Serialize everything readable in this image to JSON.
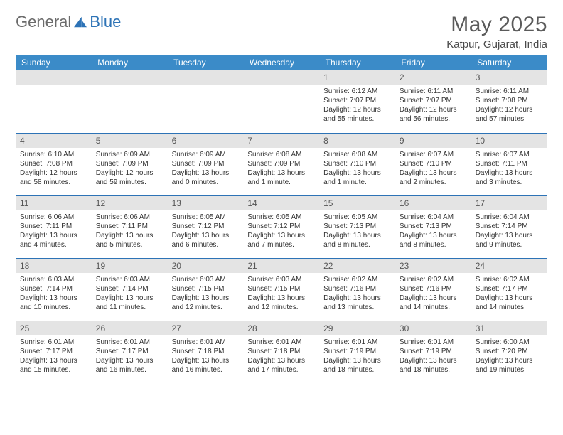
{
  "brand": {
    "word1": "General",
    "word2": "Blue"
  },
  "title": "May 2025",
  "location": "Katpur, Gujarat, India",
  "colors": {
    "header_bg": "#3b8bc8",
    "header_text": "#ffffff",
    "daynum_bg": "#e4e4e4",
    "row_divider": "#2d73b6",
    "body_text": "#333333"
  },
  "weekdays": [
    "Sunday",
    "Monday",
    "Tuesday",
    "Wednesday",
    "Thursday",
    "Friday",
    "Saturday"
  ],
  "weeks": [
    [
      {
        "n": "",
        "sr": "",
        "ss": "",
        "dl": ""
      },
      {
        "n": "",
        "sr": "",
        "ss": "",
        "dl": ""
      },
      {
        "n": "",
        "sr": "",
        "ss": "",
        "dl": ""
      },
      {
        "n": "",
        "sr": "",
        "ss": "",
        "dl": ""
      },
      {
        "n": "1",
        "sr": "Sunrise: 6:12 AM",
        "ss": "Sunset: 7:07 PM",
        "dl": "Daylight: 12 hours and 55 minutes."
      },
      {
        "n": "2",
        "sr": "Sunrise: 6:11 AM",
        "ss": "Sunset: 7:07 PM",
        "dl": "Daylight: 12 hours and 56 minutes."
      },
      {
        "n": "3",
        "sr": "Sunrise: 6:11 AM",
        "ss": "Sunset: 7:08 PM",
        "dl": "Daylight: 12 hours and 57 minutes."
      }
    ],
    [
      {
        "n": "4",
        "sr": "Sunrise: 6:10 AM",
        "ss": "Sunset: 7:08 PM",
        "dl": "Daylight: 12 hours and 58 minutes."
      },
      {
        "n": "5",
        "sr": "Sunrise: 6:09 AM",
        "ss": "Sunset: 7:09 PM",
        "dl": "Daylight: 12 hours and 59 minutes."
      },
      {
        "n": "6",
        "sr": "Sunrise: 6:09 AM",
        "ss": "Sunset: 7:09 PM",
        "dl": "Daylight: 13 hours and 0 minutes."
      },
      {
        "n": "7",
        "sr": "Sunrise: 6:08 AM",
        "ss": "Sunset: 7:09 PM",
        "dl": "Daylight: 13 hours and 1 minute."
      },
      {
        "n": "8",
        "sr": "Sunrise: 6:08 AM",
        "ss": "Sunset: 7:10 PM",
        "dl": "Daylight: 13 hours and 1 minute."
      },
      {
        "n": "9",
        "sr": "Sunrise: 6:07 AM",
        "ss": "Sunset: 7:10 PM",
        "dl": "Daylight: 13 hours and 2 minutes."
      },
      {
        "n": "10",
        "sr": "Sunrise: 6:07 AM",
        "ss": "Sunset: 7:11 PM",
        "dl": "Daylight: 13 hours and 3 minutes."
      }
    ],
    [
      {
        "n": "11",
        "sr": "Sunrise: 6:06 AM",
        "ss": "Sunset: 7:11 PM",
        "dl": "Daylight: 13 hours and 4 minutes."
      },
      {
        "n": "12",
        "sr": "Sunrise: 6:06 AM",
        "ss": "Sunset: 7:11 PM",
        "dl": "Daylight: 13 hours and 5 minutes."
      },
      {
        "n": "13",
        "sr": "Sunrise: 6:05 AM",
        "ss": "Sunset: 7:12 PM",
        "dl": "Daylight: 13 hours and 6 minutes."
      },
      {
        "n": "14",
        "sr": "Sunrise: 6:05 AM",
        "ss": "Sunset: 7:12 PM",
        "dl": "Daylight: 13 hours and 7 minutes."
      },
      {
        "n": "15",
        "sr": "Sunrise: 6:05 AM",
        "ss": "Sunset: 7:13 PM",
        "dl": "Daylight: 13 hours and 8 minutes."
      },
      {
        "n": "16",
        "sr": "Sunrise: 6:04 AM",
        "ss": "Sunset: 7:13 PM",
        "dl": "Daylight: 13 hours and 8 minutes."
      },
      {
        "n": "17",
        "sr": "Sunrise: 6:04 AM",
        "ss": "Sunset: 7:14 PM",
        "dl": "Daylight: 13 hours and 9 minutes."
      }
    ],
    [
      {
        "n": "18",
        "sr": "Sunrise: 6:03 AM",
        "ss": "Sunset: 7:14 PM",
        "dl": "Daylight: 13 hours and 10 minutes."
      },
      {
        "n": "19",
        "sr": "Sunrise: 6:03 AM",
        "ss": "Sunset: 7:14 PM",
        "dl": "Daylight: 13 hours and 11 minutes."
      },
      {
        "n": "20",
        "sr": "Sunrise: 6:03 AM",
        "ss": "Sunset: 7:15 PM",
        "dl": "Daylight: 13 hours and 12 minutes."
      },
      {
        "n": "21",
        "sr": "Sunrise: 6:03 AM",
        "ss": "Sunset: 7:15 PM",
        "dl": "Daylight: 13 hours and 12 minutes."
      },
      {
        "n": "22",
        "sr": "Sunrise: 6:02 AM",
        "ss": "Sunset: 7:16 PM",
        "dl": "Daylight: 13 hours and 13 minutes."
      },
      {
        "n": "23",
        "sr": "Sunrise: 6:02 AM",
        "ss": "Sunset: 7:16 PM",
        "dl": "Daylight: 13 hours and 14 minutes."
      },
      {
        "n": "24",
        "sr": "Sunrise: 6:02 AM",
        "ss": "Sunset: 7:17 PM",
        "dl": "Daylight: 13 hours and 14 minutes."
      }
    ],
    [
      {
        "n": "25",
        "sr": "Sunrise: 6:01 AM",
        "ss": "Sunset: 7:17 PM",
        "dl": "Daylight: 13 hours and 15 minutes."
      },
      {
        "n": "26",
        "sr": "Sunrise: 6:01 AM",
        "ss": "Sunset: 7:17 PM",
        "dl": "Daylight: 13 hours and 16 minutes."
      },
      {
        "n": "27",
        "sr": "Sunrise: 6:01 AM",
        "ss": "Sunset: 7:18 PM",
        "dl": "Daylight: 13 hours and 16 minutes."
      },
      {
        "n": "28",
        "sr": "Sunrise: 6:01 AM",
        "ss": "Sunset: 7:18 PM",
        "dl": "Daylight: 13 hours and 17 minutes."
      },
      {
        "n": "29",
        "sr": "Sunrise: 6:01 AM",
        "ss": "Sunset: 7:19 PM",
        "dl": "Daylight: 13 hours and 18 minutes."
      },
      {
        "n": "30",
        "sr": "Sunrise: 6:01 AM",
        "ss": "Sunset: 7:19 PM",
        "dl": "Daylight: 13 hours and 18 minutes."
      },
      {
        "n": "31",
        "sr": "Sunrise: 6:00 AM",
        "ss": "Sunset: 7:20 PM",
        "dl": "Daylight: 13 hours and 19 minutes."
      }
    ]
  ]
}
